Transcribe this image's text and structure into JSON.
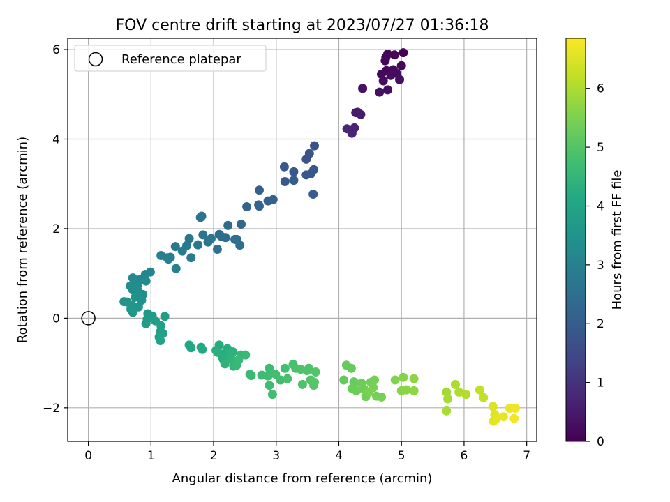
{
  "chart_data": {
    "type": "scatter",
    "title": "FOV centre drift starting at 2023/07/27 01:36:18",
    "xlabel": "Angular distance from reference (arcmin)",
    "ylabel": "Rotation from reference (arcmin)",
    "xlim": [
      -0.33,
      7.16
    ],
    "ylim": [
      -2.75,
      6.25
    ],
    "xticks": [
      "0",
      "1",
      "2",
      "3",
      "4",
      "5",
      "6",
      "7"
    ],
    "yticks": [
      "−2",
      "0",
      "2",
      "4",
      "6"
    ],
    "grid": true,
    "legend": {
      "placement": "top-left",
      "entries": [
        "Reference platepar"
      ]
    },
    "reference_point": {
      "x": 0,
      "y": 0
    },
    "colorbar": {
      "label": "Hours from first FF file",
      "colormap": "viridis",
      "range": [
        0,
        6.85
      ],
      "ticks": [
        "0",
        "1",
        "2",
        "3",
        "4",
        "5",
        "6"
      ]
    },
    "points": [
      [
        5.03,
        5.93,
        0.02
      ],
      [
        4.78,
        5.9,
        0.05
      ],
      [
        4.89,
        5.88,
        0.07
      ],
      [
        4.74,
        5.75,
        0.09
      ],
      [
        4.75,
        5.82,
        0.1
      ],
      [
        5.0,
        5.64,
        0.12
      ],
      [
        4.76,
        5.53,
        0.14
      ],
      [
        4.68,
        5.45,
        0.16
      ],
      [
        4.87,
        5.55,
        0.18
      ],
      [
        4.92,
        5.47,
        0.2
      ],
      [
        4.71,
        5.3,
        0.22
      ],
      [
        4.83,
        5.42,
        0.24
      ],
      [
        4.97,
        5.33,
        0.26
      ],
      [
        4.78,
        5.1,
        0.28
      ],
      [
        4.65,
        5.05,
        0.3
      ],
      [
        4.38,
        5.13,
        0.32
      ],
      [
        4.3,
        4.6,
        0.48
      ],
      [
        4.27,
        4.59,
        0.5
      ],
      [
        4.35,
        4.55,
        0.52
      ],
      [
        4.25,
        4.25,
        0.65
      ],
      [
        4.21,
        4.13,
        0.68
      ],
      [
        4.13,
        4.23,
        0.7
      ],
      [
        3.61,
        3.85,
        1.7
      ],
      [
        3.53,
        3.68,
        1.73
      ],
      [
        3.48,
        3.55,
        1.76
      ],
      [
        3.6,
        3.32,
        1.79
      ],
      [
        3.55,
        3.22,
        1.82
      ],
      [
        3.48,
        3.2,
        1.85
      ],
      [
        3.28,
        3.27,
        1.88
      ],
      [
        3.13,
        3.38,
        1.91
      ],
      [
        3.14,
        3.05,
        1.94
      ],
      [
        3.28,
        3.08,
        1.97
      ],
      [
        3.59,
        2.77,
        2.0
      ],
      [
        2.73,
        2.86,
        2.05
      ],
      [
        2.95,
        2.65,
        2.1
      ],
      [
        2.87,
        2.62,
        2.12
      ],
      [
        2.72,
        2.53,
        2.15
      ],
      [
        2.53,
        2.49,
        2.18
      ],
      [
        2.73,
        2.5,
        2.2
      ],
      [
        2.44,
        2.1,
        2.3
      ],
      [
        2.23,
        2.07,
        2.35
      ],
      [
        2.09,
        1.87,
        2.4
      ],
      [
        2.19,
        1.8,
        2.42
      ],
      [
        2.12,
        1.83,
        2.45
      ],
      [
        2.37,
        1.76,
        2.48
      ],
      [
        2.42,
        1.63,
        2.5
      ],
      [
        2.34,
        1.76,
        2.52
      ],
      [
        2.06,
        1.54,
        2.55
      ],
      [
        1.81,
        2.28,
        2.6
      ],
      [
        1.79,
        2.25,
        2.62
      ],
      [
        1.83,
        1.86,
        2.65
      ],
      [
        1.91,
        1.7,
        2.68
      ],
      [
        1.96,
        1.78,
        2.7
      ],
      [
        1.75,
        1.64,
        2.72
      ],
      [
        1.61,
        1.78,
        2.75
      ],
      [
        1.57,
        1.62,
        2.78
      ],
      [
        1.39,
        1.6,
        2.8
      ],
      [
        1.64,
        1.35,
        2.83
      ],
      [
        1.5,
        1.5,
        2.86
      ],
      [
        1.31,
        1.36,
        2.88
      ],
      [
        1.26,
        1.35,
        2.9
      ],
      [
        1.28,
        1.32,
        2.92
      ],
      [
        1.16,
        1.4,
        2.95
      ],
      [
        1.4,
        1.11,
        2.98
      ],
      [
        0.99,
        1.03,
        3.1
      ],
      [
        0.91,
        0.98,
        3.13
      ],
      [
        0.82,
        0.86,
        3.16
      ],
      [
        0.71,
        0.9,
        3.19
      ],
      [
        0.92,
        0.83,
        3.22
      ],
      [
        0.74,
        0.8,
        3.25
      ],
      [
        0.78,
        0.72,
        3.28
      ],
      [
        0.67,
        0.72,
        3.31
      ],
      [
        0.7,
        0.65,
        3.34
      ],
      [
        0.79,
        0.62,
        3.37
      ],
      [
        0.87,
        0.53,
        3.4
      ],
      [
        0.75,
        0.47,
        3.43
      ],
      [
        0.85,
        0.4,
        3.46
      ],
      [
        0.62,
        0.36,
        3.49
      ],
      [
        0.57,
        0.37,
        3.52
      ],
      [
        0.8,
        0.25,
        3.55
      ],
      [
        0.69,
        0.3,
        3.58
      ],
      [
        0.68,
        0.2,
        3.61
      ],
      [
        0.71,
        0.13,
        3.64
      ],
      [
        0.95,
        0.1,
        3.67
      ],
      [
        1.02,
        0.05,
        3.7
      ],
      [
        0.94,
        -0.02,
        3.73
      ],
      [
        0.92,
        -0.12,
        3.76
      ],
      [
        1.07,
        -0.06,
        3.79
      ],
      [
        1.22,
        0.04,
        3.82
      ],
      [
        1.16,
        -0.17,
        3.85
      ],
      [
        1.15,
        -0.3,
        3.88
      ],
      [
        1.19,
        -0.34,
        3.91
      ],
      [
        1.13,
        -0.42,
        3.94
      ],
      [
        1.15,
        -0.5,
        3.97
      ],
      [
        1.61,
        -0.6,
        4.05
      ],
      [
        1.64,
        -0.66,
        4.08
      ],
      [
        1.8,
        -0.65,
        4.11
      ],
      [
        1.82,
        -0.7,
        4.14
      ],
      [
        2.09,
        -0.6,
        4.17
      ],
      [
        2.04,
        -0.72,
        4.2
      ],
      [
        2.12,
        -0.8,
        4.23
      ],
      [
        2.22,
        -0.68,
        4.26
      ],
      [
        2.15,
        -0.91,
        4.29
      ],
      [
        2.06,
        -0.76,
        4.32
      ],
      [
        2.25,
        -0.8,
        4.35
      ],
      [
        2.31,
        -0.75,
        4.38
      ],
      [
        2.18,
        -1.02,
        4.41
      ],
      [
        2.28,
        -0.91,
        4.44
      ],
      [
        2.32,
        -1.07,
        4.47
      ],
      [
        2.38,
        -0.95,
        4.5
      ],
      [
        2.44,
        -0.82,
        4.53
      ],
      [
        2.37,
        -1.05,
        4.56
      ],
      [
        2.4,
        -0.93,
        4.58
      ],
      [
        2.51,
        -0.82,
        4.6
      ],
      [
        2.58,
        -1.25,
        4.62
      ],
      [
        2.6,
        -1.28,
        4.64
      ],
      [
        2.77,
        -1.27,
        4.66
      ],
      [
        2.89,
        -1.12,
        4.68
      ],
      [
        2.87,
        -1.29,
        4.7
      ],
      [
        2.89,
        -1.5,
        4.72
      ],
      [
        2.94,
        -1.7,
        4.74
      ],
      [
        2.99,
        -1.25,
        4.76
      ],
      [
        3.07,
        -1.38,
        4.78
      ],
      [
        3.14,
        -1.12,
        4.8
      ],
      [
        3.27,
        -1.03,
        4.82
      ],
      [
        3.18,
        -1.35,
        4.84
      ],
      [
        3.31,
        -1.12,
        4.86
      ],
      [
        3.39,
        -1.14,
        4.88
      ],
      [
        3.42,
        -1.48,
        4.9
      ],
      [
        3.49,
        -1.17,
        4.92
      ],
      [
        3.52,
        -1.12,
        4.94
      ],
      [
        3.55,
        -1.38,
        4.96
      ],
      [
        3.6,
        -1.5,
        4.98
      ],
      [
        3.63,
        -1.2,
        5.0
      ],
      [
        3.61,
        -1.43,
        5.02
      ],
      [
        4.08,
        -1.38,
        5.2
      ],
      [
        4.12,
        -1.05,
        5.22
      ],
      [
        4.2,
        -1.12,
        5.24
      ],
      [
        4.24,
        -1.42,
        5.26
      ],
      [
        4.21,
        -1.57,
        5.28
      ],
      [
        4.28,
        -1.62,
        5.3
      ],
      [
        4.36,
        -1.45,
        5.32
      ],
      [
        4.4,
        -1.58,
        5.34
      ],
      [
        4.43,
        -1.75,
        5.36
      ],
      [
        4.51,
        -1.43,
        5.38
      ],
      [
        4.57,
        -1.38,
        5.4
      ],
      [
        4.6,
        -1.74,
        5.42
      ],
      [
        4.68,
        -1.76,
        5.44
      ],
      [
        4.55,
        -1.55,
        5.46
      ],
      [
        4.48,
        -1.65,
        5.48
      ],
      [
        4.9,
        -1.38,
        5.55
      ],
      [
        5.03,
        -1.32,
        5.58
      ],
      [
        5.0,
        -1.62,
        5.61
      ],
      [
        5.08,
        -1.6,
        5.64
      ],
      [
        5.2,
        -1.35,
        5.67
      ],
      [
        5.2,
        -1.62,
        5.7
      ],
      [
        5.72,
        -1.65,
        5.9
      ],
      [
        5.74,
        -1.8,
        5.93
      ],
      [
        5.72,
        -2.07,
        5.96
      ],
      [
        5.86,
        -1.48,
        5.99
      ],
      [
        5.92,
        -1.65,
        6.02
      ],
      [
        6.03,
        -1.7,
        6.05
      ],
      [
        6.25,
        -1.6,
        6.2
      ],
      [
        6.31,
        -1.77,
        6.23
      ],
      [
        6.46,
        -1.97,
        6.5
      ],
      [
        6.49,
        -2.15,
        6.53
      ],
      [
        6.47,
        -2.3,
        6.56
      ],
      [
        6.52,
        -2.24,
        6.59
      ],
      [
        6.63,
        -2.2,
        6.62
      ],
      [
        6.73,
        -2.01,
        6.65
      ],
      [
        6.82,
        -2.01,
        6.7
      ],
      [
        6.8,
        -2.24,
        6.75
      ]
    ]
  }
}
